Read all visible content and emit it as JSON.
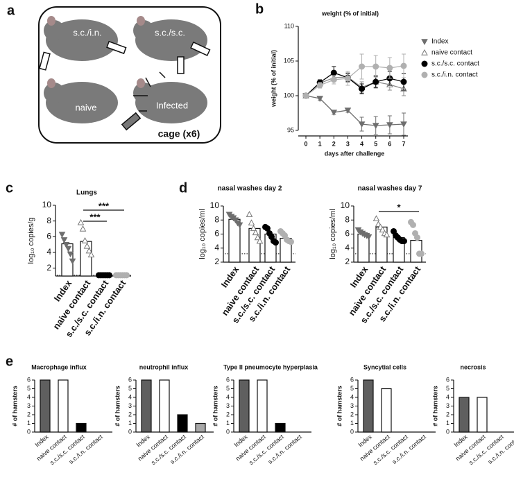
{
  "panels": [
    "a",
    "b",
    "c",
    "d",
    "e"
  ],
  "diagram": {
    "labels": [
      "s.c./i.n.",
      "s.c./s.c.",
      "naive",
      "Infected"
    ],
    "caption": "cage (x6)"
  },
  "chart_data": [
    {
      "type": "line",
      "title": "weight (% of initial)",
      "xlabel": "days after challenge",
      "ylabel": "weight (% of initial)",
      "x": [
        0,
        1,
        2,
        3,
        4,
        5,
        6,
        7
      ],
      "xlim": [
        0,
        7
      ],
      "xticks": [
        0,
        1,
        2,
        3,
        4,
        5,
        6,
        7
      ],
      "ylim": [
        95,
        110
      ],
      "yticks": [
        95,
        100,
        105,
        110
      ],
      "series": [
        {
          "name": "Index",
          "color": "#6e6e6e",
          "line_color": "#6e6e6e",
          "marker": "triangle-down",
          "values": [
            100,
            99.6,
            97.6,
            97.9,
            95.9,
            95.7,
            95.8,
            95.9
          ],
          "errors": [
            0,
            0.3,
            0.3,
            0.3,
            1.0,
            1.3,
            1.3,
            1.6
          ]
        },
        {
          "name": "naive contact",
          "color": "#ffffff",
          "line_color": "#8a8a8a",
          "marker": "triangle-up",
          "values": [
            100,
            101.8,
            102.6,
            102.7,
            101.2,
            102.0,
            101.6,
            101.0
          ],
          "errors": [
            0,
            0.4,
            0.5,
            0.6,
            0.8,
            0.9,
            0.8,
            1.0
          ]
        },
        {
          "name": "s.c./s.c. contact",
          "color": "#000000",
          "line_color": "#000000",
          "marker": "circle",
          "values": [
            100,
            101.9,
            103.3,
            102.6,
            101.0,
            102.0,
            102.5,
            102.0
          ],
          "errors": [
            0,
            0.4,
            0.9,
            0.6,
            0.7,
            0.8,
            1.0,
            1.2
          ]
        },
        {
          "name": "s.c./i.n. contact",
          "color": "#b0b0b0",
          "line_color": "#b0b0b0",
          "marker": "circle",
          "values": [
            100,
            101.5,
            102.3,
            102.5,
            104.2,
            104.2,
            104.0,
            104.3
          ],
          "errors": [
            0,
            0.4,
            0.6,
            1.0,
            1.8,
            1.6,
            1.5,
            1.7
          ]
        }
      ]
    },
    {
      "type": "dotbar",
      "title": "Lungs",
      "ylabel": "log₁₀ copies/g",
      "categories": [
        "Index",
        "naive contact",
        "s.c./s.c. contact",
        "s.c./i.n. contact"
      ],
      "colors": [
        "#6e6e6e",
        "#ffffff",
        "#000000",
        "#b0b0b0"
      ],
      "markers": [
        "triangle-down",
        "triangle-up",
        "circle",
        "circle"
      ],
      "values": [
        5.1,
        5.4,
        1.1,
        1.1
      ],
      "points": [
        [
          6.3,
          5.6,
          5.0,
          4.5,
          3.8,
          2.9
        ],
        [
          7.8,
          7.0,
          5.5,
          4.8,
          4.2,
          3.7
        ],
        [
          1.1,
          1.1,
          1.1,
          1.1,
          1.1,
          1.1
        ],
        [
          1.1,
          1.1,
          1.1,
          1.1,
          1.1,
          1.1
        ]
      ],
      "ylim": [
        1,
        10
      ],
      "yticks": [
        2,
        4,
        6,
        8,
        10
      ],
      "detection_limit": 1.1,
      "annotations": [
        {
          "text": "***",
          "from": 1,
          "to": 3
        },
        {
          "text": "***",
          "from": 1,
          "to": 2
        }
      ]
    },
    {
      "type": "dotbar",
      "title": "nasal washes day 2",
      "ylabel": "log₁₀ copies/ml",
      "categories": [
        "Index",
        "naive contact",
        "s.c./s.c. contact",
        "s.c./i.n. contact"
      ],
      "colors": [
        "#6e6e6e",
        "#ffffff",
        "#000000",
        "#b0b0b0"
      ],
      "markers": [
        "triangle-down",
        "triangle-up",
        "circle",
        "circle"
      ],
      "values": [
        8.1,
        6.8,
        6.0,
        5.4
      ],
      "points": [
        [
          8.8,
          8.5,
          8.3,
          8.0,
          7.6,
          7.3
        ],
        [
          8.8,
          7.6,
          6.8,
          6.2,
          5.5,
          5.0
        ],
        [
          7.0,
          6.8,
          6.1,
          5.6,
          5.0,
          4.8
        ],
        [
          6.4,
          6.1,
          5.8,
          5.2,
          5.0,
          4.9
        ]
      ],
      "ylim": [
        2,
        10
      ],
      "yticks": [
        2,
        4,
        6,
        8,
        10
      ],
      "detection_limit": 3.2,
      "annotations": []
    },
    {
      "type": "dotbar",
      "title": "nasal washes day 7",
      "ylabel": "log₁₀ copies/ml",
      "categories": [
        "Index",
        "naive contact",
        "s.c./s.c. contact",
        "s.c./i.n. contact"
      ],
      "colors": [
        "#6e6e6e",
        "#ffffff",
        "#000000",
        "#b0b0b0"
      ],
      "markers": [
        "triangle-down",
        "triangle-up",
        "circle",
        "circle"
      ],
      "values": [
        6.0,
        7.0,
        5.5,
        5.1
      ],
      "points": [
        [
          6.6,
          6.3,
          6.1,
          5.9,
          5.8,
          5.6
        ],
        [
          8.2,
          7.4,
          7.0,
          6.6,
          6.1,
          5.9
        ],
        [
          6.4,
          5.8,
          5.5,
          5.2,
          5.0,
          5.0
        ],
        [
          7.7,
          7.3,
          6.1,
          5.5,
          3.2,
          3.2
        ]
      ],
      "ylim": [
        2,
        10
      ],
      "yticks": [
        2,
        4,
        6,
        8,
        10
      ],
      "detection_limit": 3.2,
      "annotations": [
        {
          "text": "*",
          "from": 1,
          "to": 3
        }
      ]
    },
    {
      "type": "bar",
      "title": "Macrophage influx",
      "ylabel": "# of hamsters",
      "categories": [
        "Index",
        "naive contact",
        "s.c./s.c. contact",
        "s.c./i.n. contact"
      ],
      "colors": [
        "#5f5f5f",
        "#ffffff",
        "#000000",
        "#a8a8a8"
      ],
      "values": [
        6,
        6,
        1,
        0
      ],
      "ylim": [
        0,
        6
      ],
      "yticks": [
        0,
        1,
        2,
        3,
        4,
        5,
        6
      ]
    },
    {
      "type": "bar",
      "title": "neutrophil influx",
      "ylabel": "# of hamsters",
      "categories": [
        "Index",
        "naive contact",
        "s.c./s.c. contact",
        "s.c./i.n. contact"
      ],
      "colors": [
        "#5f5f5f",
        "#ffffff",
        "#000000",
        "#a8a8a8"
      ],
      "values": [
        6,
        6,
        2,
        1
      ],
      "ylim": [
        0,
        6
      ],
      "yticks": [
        0,
        1,
        2,
        3,
        4,
        5,
        6
      ]
    },
    {
      "type": "bar",
      "title": "Type II pneumocyte hyperplasia",
      "ylabel": "# of hamsters",
      "categories": [
        "Index",
        "naive contact",
        "s.c./s.c. contact",
        "s.c./i.n. contact"
      ],
      "colors": [
        "#5f5f5f",
        "#ffffff",
        "#000000",
        "#a8a8a8"
      ],
      "values": [
        6,
        6,
        1,
        0
      ],
      "ylim": [
        0,
        6
      ],
      "yticks": [
        0,
        1,
        2,
        3,
        4,
        5,
        6
      ]
    },
    {
      "type": "bar",
      "title": "Syncytial cells",
      "ylabel": "# of hamsters",
      "categories": [
        "Index",
        "naive contact",
        "s.c./s.c. contact",
        "s.c./i.n. contact"
      ],
      "colors": [
        "#5f5f5f",
        "#ffffff",
        "#000000",
        "#a8a8a8"
      ],
      "values": [
        6,
        5,
        0,
        0
      ],
      "ylim": [
        0,
        6
      ],
      "yticks": [
        0,
        1,
        2,
        3,
        4,
        5,
        6
      ]
    },
    {
      "type": "bar",
      "title": "necrosis",
      "ylabel": "# of hamsters",
      "categories": [
        "Index",
        "naive contact",
        "s.c./s.c. contact",
        "s.c./i.n. contact"
      ],
      "colors": [
        "#5f5f5f",
        "#ffffff",
        "#000000",
        "#a8a8a8"
      ],
      "values": [
        4,
        4,
        0,
        0
      ],
      "ylim": [
        0,
        6
      ],
      "yticks": [
        0,
        1,
        2,
        3,
        4,
        5,
        6
      ]
    }
  ]
}
